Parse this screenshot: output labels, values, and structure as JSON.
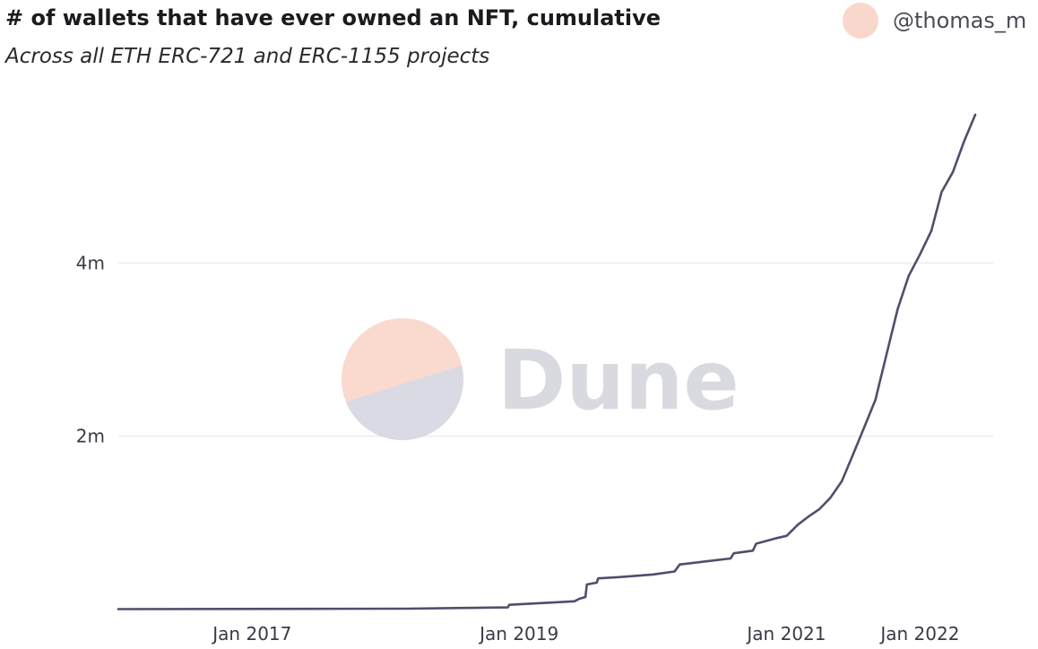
{
  "header": {
    "title": "# of wallets that have ever owned an NFT, cumulative",
    "subtitle": "Across all ETH ERC-721 and ERC-1155 projects",
    "author": "@thomas_m"
  },
  "watermark": {
    "text": "Dune",
    "colors": {
      "top": "#fad9cf",
      "bottom": "#d9dae3",
      "text": "#d9dae0"
    }
  },
  "colors": {
    "line": "#4e4f6b",
    "grid": "#ececef",
    "axis_text": "#3a3a45"
  },
  "chart_data": {
    "type": "line",
    "title": "# of wallets that have ever owned an NFT, cumulative",
    "subtitle": "Across all ETH ERC-721 and ERC-1155 projects",
    "xlabel": "",
    "ylabel": "",
    "xlim": [
      "2016-01-01",
      "2022-07-20"
    ],
    "ylim": [
      0,
      6000000
    ],
    "grid": true,
    "y_ticks": [
      {
        "value": 2000000,
        "label": "2m"
      },
      {
        "value": 4000000,
        "label": "4m"
      }
    ],
    "x_ticks": [
      {
        "value": "2017-01-01",
        "label": "Jan 2017"
      },
      {
        "value": "2019-01-01",
        "label": "Jan 2019"
      },
      {
        "value": "2021-01-01",
        "label": "Jan 2021"
      },
      {
        "value": "2022-01-01",
        "label": "Jan 2022"
      }
    ],
    "series": [
      {
        "points": [
          [
            "2016-01-01",
            5000
          ],
          [
            "2017-06-01",
            8000
          ],
          [
            "2018-03-01",
            10000
          ],
          [
            "2018-09-01",
            20000
          ],
          [
            "2018-12-01",
            25000
          ],
          [
            "2018-12-05",
            55000
          ],
          [
            "2019-06-01",
            95000
          ],
          [
            "2019-06-15",
            125000
          ],
          [
            "2019-07-01",
            145000
          ],
          [
            "2019-07-05",
            290000
          ],
          [
            "2019-08-01",
            310000
          ],
          [
            "2019-08-05",
            360000
          ],
          [
            "2019-10-01",
            375000
          ],
          [
            "2020-01-01",
            405000
          ],
          [
            "2020-03-01",
            440000
          ],
          [
            "2020-03-15",
            520000
          ],
          [
            "2020-06-01",
            560000
          ],
          [
            "2020-08-01",
            590000
          ],
          [
            "2020-08-10",
            650000
          ],
          [
            "2020-10-01",
            680000
          ],
          [
            "2020-10-10",
            760000
          ],
          [
            "2020-12-01",
            820000
          ],
          [
            "2021-01-01",
            850000
          ],
          [
            "2021-02-01",
            980000
          ],
          [
            "2021-03-01",
            1070000
          ],
          [
            "2021-04-01",
            1160000
          ],
          [
            "2021-05-01",
            1290000
          ],
          [
            "2021-06-01",
            1480000
          ],
          [
            "2021-07-01",
            1780000
          ],
          [
            "2021-08-01",
            2100000
          ],
          [
            "2021-09-01",
            2420000
          ],
          [
            "2021-10-01",
            2940000
          ],
          [
            "2021-11-01",
            3470000
          ],
          [
            "2021-12-01",
            3850000
          ],
          [
            "2022-01-01",
            4100000
          ],
          [
            "2022-02-01",
            4370000
          ],
          [
            "2022-03-01",
            4820000
          ],
          [
            "2022-04-01",
            5050000
          ],
          [
            "2022-05-01",
            5400000
          ],
          [
            "2022-06-01",
            5710000
          ]
        ]
      }
    ]
  }
}
